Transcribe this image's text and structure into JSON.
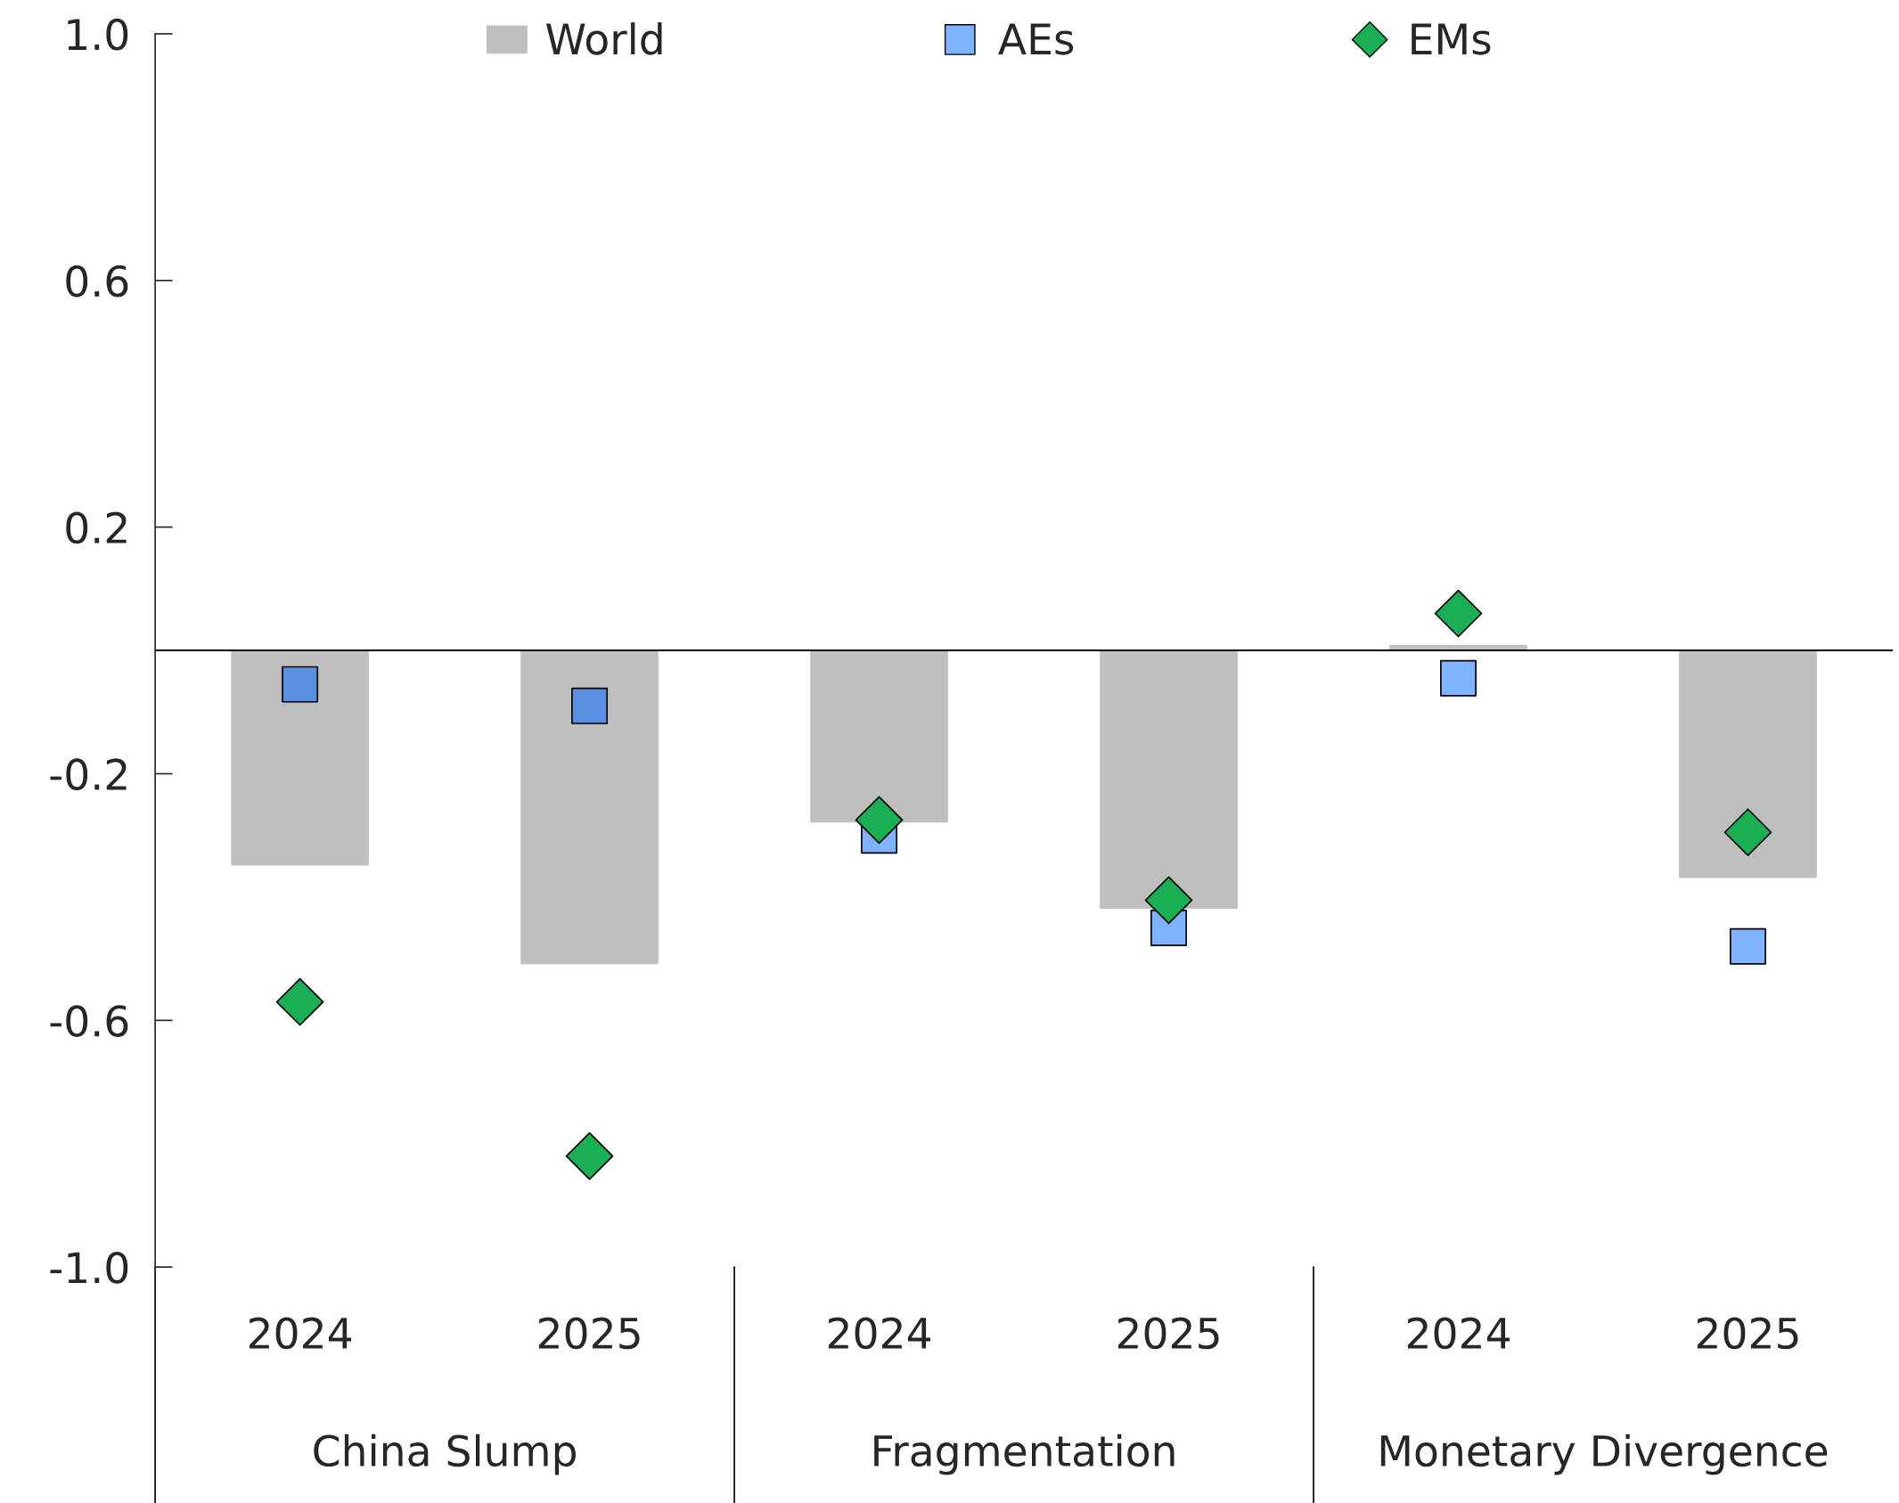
{
  "chart_data": {
    "type": "bar",
    "categories": [
      "2024",
      "2025",
      "2024",
      "2025",
      "2024",
      "2025"
    ],
    "series": [
      {
        "name": "World",
        "color": "#bfbfbf",
        "values": [
          -0.35,
          -0.51,
          -0.28,
          -0.42,
          0.01,
          -0.37
        ]
      },
      {
        "name": "AEs",
        "type": "scatter",
        "marker": "square",
        "color": "#7fb2ff",
        "colors": [
          "#5b8fe0",
          "#5b8fe0",
          "#7fb2ff",
          "#7fb2ff",
          "#7fb2ff",
          "#7fb2ff"
        ],
        "values": [
          -0.055,
          -0.09,
          -0.3,
          -0.45,
          -0.045,
          -0.48
        ]
      },
      {
        "name": "EMs",
        "type": "scatter",
        "marker": "diamond",
        "color": "#1aaf54",
        "values": [
          -0.57,
          -0.82,
          -0.275,
          -0.405,
          0.06,
          -0.295
        ]
      }
    ],
    "annotations": [
      "China Slump",
      "Fragmentation",
      "Monetary Divergence"
    ],
    "ylim": [
      -1.0,
      1.0
    ],
    "yticks": [
      {
        "value": 1.0,
        "label": "1.0"
      },
      0.6,
      0.2,
      -0.2,
      -0.6,
      {
        "value": -1.0,
        "label": "-1.0"
      }
    ],
    "grid": false,
    "legend": "top"
  }
}
